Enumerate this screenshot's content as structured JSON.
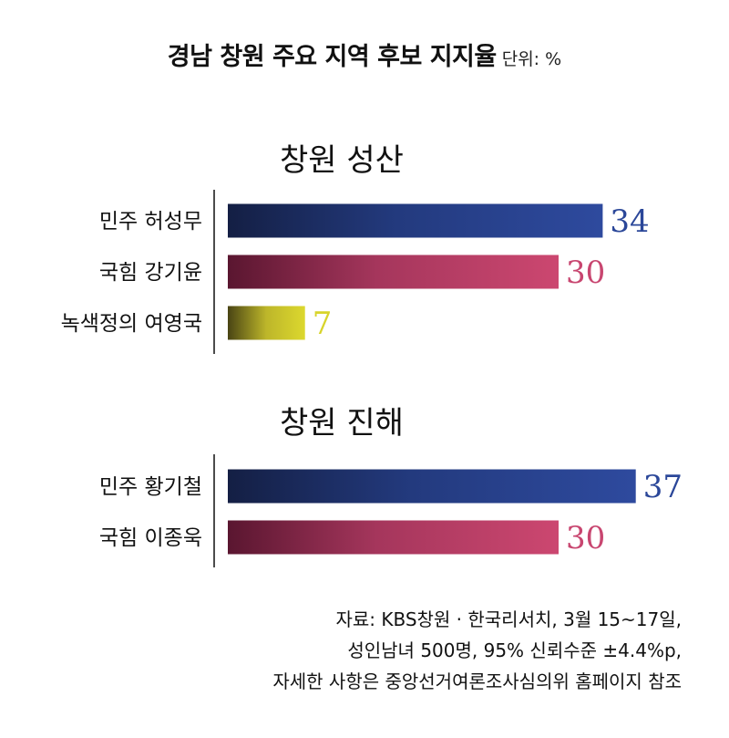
{
  "title": "경남 창원 주요 지역 후보 지지율",
  "unit": "단위: %",
  "colors": {
    "blue": "#2b4799",
    "red": "#c84670",
    "yellow": "#d8d42c"
  },
  "chart_data": [
    {
      "type": "bar",
      "title": "창원 성산",
      "categories": [
        "민주 허성무",
        "국힘 강기윤",
        "녹색정의 여영국"
      ],
      "values": [
        34,
        30,
        7
      ],
      "colors": [
        "blue",
        "red",
        "yellow"
      ]
    },
    {
      "type": "bar",
      "title": "창원 진해",
      "categories": [
        "민주 황기철",
        "국힘 이종욱"
      ],
      "values": [
        37,
        30
      ],
      "colors": [
        "blue",
        "red"
      ]
    }
  ],
  "source_lines": [
    "자료: KBS창원 · 한국리서치, 3월 15~17일,",
    "성인남녀 500명, 95% 신뢰수준 ±4.4%p,",
    "자세한 사항은 중앙선거여론조사심의위 홈페이지 참조"
  ]
}
